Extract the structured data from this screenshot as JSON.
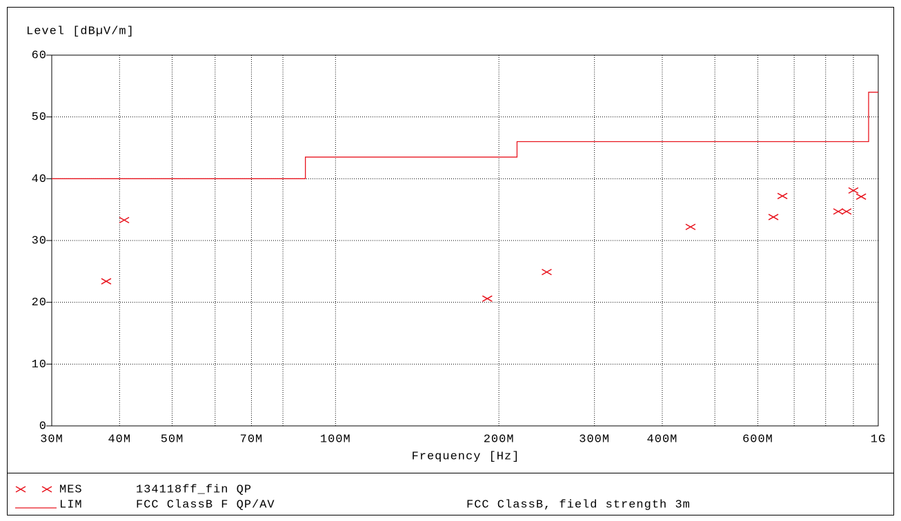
{
  "chart_data": {
    "type": "scatter",
    "ylabel": "Level [dBµV/m]",
    "xlabel": "Frequency [Hz]",
    "xscale": "log",
    "grid": true,
    "xlim": [
      30000000,
      1000000000
    ],
    "ylim": [
      0,
      60
    ],
    "yticks": [
      0,
      10,
      20,
      30,
      40,
      50,
      60
    ],
    "xticks": [
      {
        "value": 30000000,
        "label": "30M"
      },
      {
        "value": 40000000,
        "label": "40M"
      },
      {
        "value": 50000000,
        "label": "50M"
      },
      {
        "value": 60000000,
        "label": null
      },
      {
        "value": 70000000,
        "label": "70M"
      },
      {
        "value": 80000000,
        "label": null
      },
      {
        "value": 100000000,
        "label": "100M"
      },
      {
        "value": 200000000,
        "label": "200M"
      },
      {
        "value": 300000000,
        "label": "300M"
      },
      {
        "value": 400000000,
        "label": "400M"
      },
      {
        "value": 500000000,
        "label": null
      },
      {
        "value": 600000000,
        "label": "600M"
      },
      {
        "value": 700000000,
        "label": null
      },
      {
        "value": 800000000,
        "label": null
      },
      {
        "value": 900000000,
        "label": null
      },
      {
        "value": 1000000000,
        "label": "1G"
      }
    ],
    "series": [
      {
        "name": "MES",
        "label": "134118ff_fin QP",
        "mark": "x",
        "color": "#e8141e",
        "x": [
          37800000,
          40800000,
          190400000,
          245000000,
          451000000,
          641000000,
          666000000,
          844000000,
          874000000,
          900000000,
          930000000
        ],
        "values": [
          23.4,
          33.3,
          20.6,
          24.9,
          32.2,
          33.8,
          37.2,
          34.7,
          34.7,
          38.1,
          37.1
        ]
      },
      {
        "name": "LIM",
        "label": "FCC ClassB F QP/AV",
        "note": "FCC ClassB, field strength 3m",
        "mark": "line",
        "color": "#e8141e",
        "x": [
          30000000,
          88000000,
          88000000,
          216000000,
          216000000,
          960000000,
          960000000,
          1000000000
        ],
        "values": [
          40,
          40,
          43.5,
          43.5,
          46,
          46,
          54,
          54
        ]
      }
    ]
  }
}
